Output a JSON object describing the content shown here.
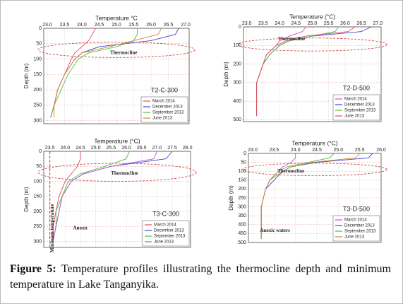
{
  "chart_data": [
    {
      "type": "line",
      "title": "Temperature °C",
      "y_label": "Depth (m)",
      "label": "T2-C-300",
      "legend": "lower right",
      "grid": true,
      "annotations": [
        "Thermocline"
      ],
      "thermocline": [
        45,
        95
      ],
      "xlim": [
        22.9,
        27.1
      ],
      "xticks": [
        {
          "value": 23,
          "label": "23.0"
        },
        23.5,
        {
          "value": 24,
          "label": "24.0"
        },
        24.5,
        {
          "value": 25,
          "label": "25.0"
        },
        25.5,
        {
          "value": 26,
          "label": "26.0"
        },
        26.5,
        {
          "value": 27,
          "label": "27.0"
        }
      ],
      "ylim": [
        0,
        310
      ],
      "yticks": [
        0,
        50,
        100,
        150,
        200,
        250,
        300
      ],
      "depth": [
        0,
        20,
        40,
        60,
        80,
        100,
        150,
        200,
        250,
        290
      ],
      "series": [
        {
          "name": "March 2014",
          "color": "#e8485a",
          "values": [
            24.4,
            24.3,
            24.2,
            24.0,
            23.8,
            23.7,
            23.5,
            23.3,
            23.2,
            23.1
          ]
        },
        {
          "name": "December 2013",
          "color": "#3b46d6",
          "values": [
            26.8,
            26.7,
            26.0,
            24.5,
            24.0,
            23.8,
            23.5,
            23.3,
            23.2,
            23.1
          ]
        },
        {
          "name": "September 2013",
          "color": "#4fbf3a",
          "values": [
            25.6,
            25.6,
            25.5,
            25.0,
            24.2,
            23.9,
            23.6,
            23.4,
            23.2,
            23.1
          ]
        },
        {
          "name": "June 2013",
          "color": "#d9822b",
          "values": [
            26.3,
            26.2,
            25.5,
            24.8,
            24.0,
            23.8,
            23.5,
            23.3,
            23.2,
            23.2
          ]
        }
      ]
    },
    {
      "type": "line",
      "title": "Temperature (°C)",
      "y_label": "Depth (m)",
      "label": "T2-D-500",
      "legend": "lower right",
      "grid": true,
      "annotations": [
        "Thermocline"
      ],
      "thermocline": [
        60,
        130
      ],
      "xlim": [
        22.9,
        27.1
      ],
      "xticks": [
        {
          "value": 23,
          "label": "23.0"
        },
        23.5,
        {
          "value": 24,
          "label": "24.0"
        },
        24.5,
        {
          "value": 25,
          "label": "25.0"
        },
        25.5,
        {
          "value": 26,
          "label": "26.0"
        },
        26.5,
        {
          "value": 27,
          "label": "27.0"
        }
      ],
      "ylim": [
        0,
        510
      ],
      "yticks": [
        0,
        100,
        200,
        300,
        400,
        500
      ],
      "depth": [
        0,
        25,
        50,
        75,
        100,
        150,
        200,
        300,
        400,
        480
      ],
      "series": [
        {
          "name": "March 2014",
          "color": "#d94bd6",
          "values": [
            24.8,
            24.7,
            24.3,
            24.0,
            23.9,
            23.6,
            23.5,
            23.3,
            23.3,
            23.3
          ]
        },
        {
          "name": "December 2013",
          "color": "#3b46d6",
          "values": [
            26.8,
            26.5,
            25.0,
            24.3,
            24.0,
            23.7,
            23.5,
            23.3,
            23.3,
            23.3
          ]
        },
        {
          "name": "September 2013",
          "color": "#4fbf3a",
          "values": [
            25.8,
            25.7,
            25.0,
            24.3,
            24.0,
            23.7,
            23.5,
            23.3,
            23.3,
            23.3
          ]
        },
        {
          "name": "June 2013",
          "color": "#e8485a",
          "values": [
            26.3,
            26.1,
            24.8,
            24.2,
            23.9,
            23.6,
            23.5,
            23.3,
            23.3,
            23.3
          ]
        }
      ]
    },
    {
      "type": "line",
      "title": "Temperature (°C)",
      "y_label": "Depth (m)",
      "label": "T3-C-300",
      "legend": "lower right",
      "grid": true,
      "annotations": [
        "Thermocline",
        "Anoxic",
        "Minimum temperature"
      ],
      "thermocline": [
        40,
        100
      ],
      "reference_x": 23.5,
      "xlim": [
        23.3,
        28.1
      ],
      "xticks": [
        23.5,
        {
          "value": 24,
          "label": "24.0"
        },
        24.5,
        {
          "value": 25,
          "label": "25.0"
        },
        25.5,
        {
          "value": 26,
          "label": "26.0"
        },
        26.5,
        {
          "value": 27,
          "label": "27.0"
        },
        27.5,
        {
          "value": 28,
          "label": "28.0"
        }
      ],
      "ylim": [
        0,
        320
      ],
      "yticks": [
        0,
        50,
        100,
        150,
        200,
        250,
        300
      ],
      "depth": [
        0,
        25,
        50,
        75,
        100,
        150,
        200,
        250,
        300
      ],
      "series": [
        {
          "name": "March 2014",
          "color": "#e8485a",
          "values": [
            24.5,
            24.5,
            24.4,
            24.2,
            24.0,
            23.8,
            23.7,
            23.6,
            23.6
          ]
        },
        {
          "name": "December 2013",
          "color": "#3b46d6",
          "values": [
            27.5,
            27.3,
            25.5,
            24.6,
            24.2,
            23.9,
            23.8,
            23.7,
            23.6
          ]
        },
        {
          "name": "September 2013",
          "color": "#4fbf3a",
          "values": [
            26.1,
            26.0,
            25.3,
            24.5,
            24.1,
            23.9,
            23.7,
            23.7,
            23.6
          ]
        },
        {
          "name": "June 2013",
          "color": "#b55ad1",
          "values": [
            27.0,
            26.9,
            25.5,
            24.6,
            24.2,
            23.9,
            23.8,
            23.7,
            23.6
          ]
        }
      ]
    },
    {
      "type": "line",
      "title": "Temperature (°C)",
      "y_label": "Depth (m)",
      "label": "T3-D-500",
      "legend": "lower right",
      "grid": true,
      "annotations": [
        "Thermocline",
        "Anoxic waters"
      ],
      "thermocline": [
        55,
        125
      ],
      "xlim": [
        22.9,
        26.0
      ],
      "xticks": [
        {
          "value": 23,
          "label": "23.0"
        },
        23.5,
        {
          "value": 24,
          "label": "24.0"
        },
        24.5,
        {
          "value": 25,
          "label": "25.0"
        },
        25.5,
        {
          "value": 26,
          "label": "26.0"
        }
      ],
      "ylim": [
        0,
        500
      ],
      "yticks": [
        0,
        50,
        100,
        150,
        200,
        250,
        300,
        350,
        400,
        450,
        500
      ],
      "depth": [
        0,
        25,
        50,
        75,
        100,
        150,
        200,
        300,
        400,
        480
      ],
      "series": [
        {
          "name": "March 2014",
          "color": "#d94bd6",
          "values": [
            24.0,
            24.0,
            23.9,
            23.7,
            23.6,
            23.4,
            23.3,
            23.2,
            23.2,
            23.2
          ]
        },
        {
          "name": "December 2013",
          "color": "#3b46d6",
          "values": [
            25.8,
            25.7,
            24.5,
            23.9,
            23.7,
            23.5,
            23.3,
            23.2,
            23.2,
            23.2
          ]
        },
        {
          "name": "September 2013",
          "color": "#4fbf3a",
          "values": [
            24.9,
            24.8,
            24.3,
            23.8,
            23.6,
            23.4,
            23.3,
            23.2,
            23.2,
            23.2
          ]
        },
        {
          "name": "June 2013",
          "color": "#d9822b",
          "values": [
            25.5,
            25.4,
            24.4,
            23.9,
            23.7,
            23.4,
            23.3,
            23.2,
            23.2,
            23.2
          ]
        }
      ]
    }
  ],
  "caption": {
    "label": "Figure 5:",
    "text": "Temperature profiles illustrating the thermocline depth and minimum temperature in Lake Tanganyika."
  }
}
